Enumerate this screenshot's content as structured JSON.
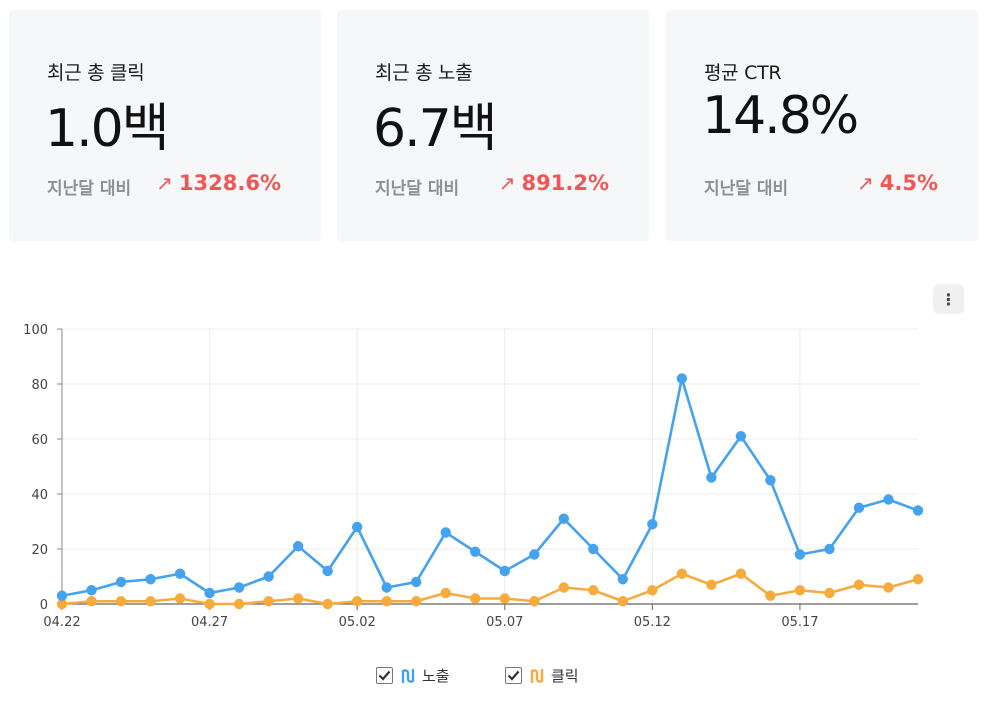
{
  "cards": [
    {
      "title": "최근 총 클릭",
      "value": "1.0백",
      "compare_label": "지난달 대비",
      "compare_value": "1328.6%",
      "trend": "up"
    },
    {
      "title": "최근 총 노출",
      "value": "6.7백",
      "compare_label": "지난달 대비",
      "compare_value": "891.2%",
      "trend": "up"
    },
    {
      "title": "평균 CTR",
      "value": "14.8%",
      "compare_label": "지난달 대비",
      "compare_value": "4.5%",
      "trend": "up"
    }
  ],
  "trend_arrow": "↗",
  "more_button_icon": "⋮",
  "colors": {
    "impressions": "#44a2ef",
    "clicks": "#f8ab3d",
    "increase": "#f05656",
    "card_bg": "#f6f7f9"
  },
  "legend": [
    {
      "label": "노출",
      "checked": true,
      "icon": "line-series-icon"
    },
    {
      "label": "클릭",
      "checked": true,
      "icon": "line-series-icon"
    }
  ],
  "chart_data": {
    "type": "line",
    "x": [
      "04.22",
      "04.23",
      "04.24",
      "04.25",
      "04.26",
      "04.27",
      "04.28",
      "04.29",
      "04.30",
      "05.01",
      "05.02",
      "05.03",
      "05.04",
      "05.05",
      "05.06",
      "05.07",
      "05.08",
      "05.09",
      "05.10",
      "05.11",
      "05.12",
      "05.13",
      "05.14",
      "05.15",
      "05.16",
      "05.17",
      "05.18",
      "05.19",
      "05.20",
      "05.21"
    ],
    "x_tick_labels": [
      "04.22",
      "04.27",
      "05.02",
      "05.07",
      "05.12",
      "05.17"
    ],
    "y_ticks": [
      0,
      20,
      40,
      60,
      80,
      100
    ],
    "ylim": [
      0,
      100
    ],
    "grid": true,
    "legend_position": "bottom-center",
    "series": [
      {
        "name": "노출",
        "color": "#44a2ef",
        "values": [
          3,
          5,
          8,
          9,
          11,
          4,
          6,
          10,
          21,
          12,
          28,
          6,
          8,
          26,
          19,
          12,
          18,
          31,
          20,
          9,
          29,
          82,
          46,
          61,
          45,
          18,
          20,
          35,
          38,
          34
        ]
      },
      {
        "name": "클릭",
        "color": "#f8ab3d",
        "values": [
          0,
          1,
          1,
          1,
          2,
          0,
          0,
          1,
          2,
          0,
          1,
          1,
          1,
          4,
          2,
          2,
          1,
          6,
          5,
          1,
          5,
          11,
          7,
          11,
          3,
          5,
          4,
          7,
          6,
          9
        ]
      }
    ]
  }
}
